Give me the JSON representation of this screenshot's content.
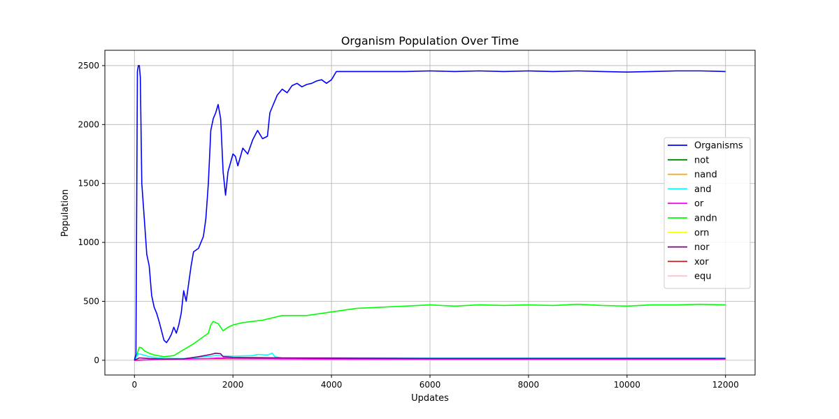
{
  "chart_data": {
    "type": "line",
    "title": "Organism Population Over Time",
    "xlabel": "Updates",
    "ylabel": "Population",
    "xlim": [
      -600,
      12600
    ],
    "ylim": [
      -125,
      2630
    ],
    "xticks": [
      0,
      2000,
      4000,
      6000,
      8000,
      10000,
      12000
    ],
    "xtick_labels": [
      "0",
      "2000",
      "4000",
      "6000",
      "8000",
      "10000",
      "12000"
    ],
    "yticks": [
      0,
      500,
      1000,
      1500,
      2000,
      2500
    ],
    "ytick_labels": [
      "0",
      "500",
      "1000",
      "1500",
      "2000",
      "2500"
    ],
    "grid": true,
    "legend_position": "center-right",
    "series": [
      {
        "name": "Organisms",
        "color": "#0000ff",
        "x": [
          0,
          30,
          60,
          80,
          100,
          120,
          150,
          200,
          250,
          300,
          350,
          400,
          450,
          500,
          550,
          600,
          650,
          700,
          750,
          800,
          850,
          900,
          950,
          1000,
          1050,
          1100,
          1150,
          1200,
          1300,
          1400,
          1450,
          1500,
          1550,
          1600,
          1650,
          1700,
          1750,
          1800,
          1850,
          1900,
          2000,
          2050,
          2100,
          2200,
          2300,
          2400,
          2500,
          2600,
          2700,
          2750,
          2800,
          2900,
          3000,
          3100,
          3200,
          3300,
          3400,
          3500,
          3600,
          3700,
          3800,
          3900,
          4000,
          4100,
          4200,
          4500,
          5000,
          5500,
          6000,
          6500,
          7000,
          7500,
          8000,
          8500,
          9000,
          9500,
          10000,
          10500,
          11000,
          11500,
          12000
        ],
        "y": [
          0,
          50,
          2450,
          2500,
          2500,
          2400,
          1500,
          1200,
          900,
          800,
          550,
          450,
          400,
          330,
          250,
          170,
          150,
          180,
          220,
          280,
          230,
          300,
          400,
          590,
          500,
          650,
          800,
          920,
          950,
          1050,
          1200,
          1500,
          1950,
          2050,
          2100,
          2170,
          2050,
          1600,
          1400,
          1600,
          1750,
          1730,
          1650,
          1800,
          1750,
          1870,
          1950,
          1880,
          1900,
          2100,
          2150,
          2250,
          2300,
          2270,
          2330,
          2350,
          2320,
          2340,
          2350,
          2370,
          2380,
          2350,
          2380,
          2450,
          2450,
          2450,
          2450,
          2450,
          2455,
          2450,
          2455,
          2450,
          2455,
          2450,
          2455,
          2450,
          2445,
          2450,
          2455,
          2455,
          2450
        ]
      },
      {
        "name": "not",
        "color": "#008000",
        "x": [
          0,
          500,
          1000,
          1500,
          2000,
          4000,
          8000,
          12000
        ],
        "y": [
          0,
          5,
          8,
          12,
          10,
          8,
          8,
          8
        ]
      },
      {
        "name": "nand",
        "color": "#ffa500",
        "x": [
          0,
          500,
          1000,
          1500,
          2000,
          4000,
          8000,
          12000
        ],
        "y": [
          0,
          3,
          5,
          8,
          7,
          6,
          6,
          6
        ]
      },
      {
        "name": "and",
        "color": "#00ffff",
        "x": [
          0,
          80,
          150,
          300,
          600,
          1000,
          1300,
          1650,
          2000,
          2400,
          2500,
          2700,
          2800,
          2850,
          3000,
          4000,
          6000,
          8000,
          10000,
          12000
        ],
        "y": [
          0,
          55,
          50,
          30,
          15,
          15,
          25,
          40,
          35,
          40,
          50,
          45,
          60,
          30,
          20,
          22,
          20,
          20,
          20,
          20
        ]
      },
      {
        "name": "or",
        "color": "#ff00ff",
        "x": [
          0,
          500,
          1000,
          1500,
          1700,
          2000,
          3000,
          4000,
          8000,
          12000
        ],
        "y": [
          0,
          8,
          10,
          15,
          20,
          15,
          12,
          10,
          10,
          10
        ]
      },
      {
        "name": "andn",
        "color": "#00ff00",
        "x": [
          0,
          60,
          100,
          150,
          200,
          300,
          400,
          600,
          800,
          1000,
          1200,
          1400,
          1500,
          1550,
          1600,
          1700,
          1800,
          1900,
          2000,
          2200,
          2400,
          2600,
          2800,
          3000,
          3500,
          4000,
          4500,
          5000,
          5500,
          6000,
          6500,
          7000,
          7500,
          8000,
          8500,
          9000,
          9500,
          10000,
          10500,
          11000,
          11500,
          12000
        ],
        "y": [
          0,
          60,
          110,
          105,
          80,
          60,
          45,
          30,
          40,
          90,
          140,
          200,
          230,
          300,
          330,
          310,
          250,
          280,
          300,
          320,
          330,
          340,
          360,
          380,
          380,
          410,
          440,
          450,
          460,
          470,
          460,
          470,
          465,
          470,
          465,
          475,
          465,
          460,
          470,
          470,
          475,
          470
        ]
      },
      {
        "name": "orn",
        "color": "#ffff00",
        "x": [
          0,
          500,
          1000,
          1500,
          2000,
          4000,
          8000,
          12000
        ],
        "y": [
          0,
          4,
          6,
          8,
          7,
          6,
          6,
          6
        ]
      },
      {
        "name": "nor",
        "color": "#800080",
        "x": [
          0,
          100,
          300,
          600,
          1000,
          1300,
          1550,
          1650,
          1750,
          1800,
          2000,
          2500,
          3000,
          4000,
          6000,
          8000,
          10000,
          12000
        ],
        "y": [
          0,
          20,
          15,
          10,
          12,
          30,
          50,
          60,
          55,
          30,
          25,
          22,
          20,
          18,
          15,
          15,
          15,
          15
        ]
      },
      {
        "name": "xor",
        "color": "#b22222",
        "x": [
          0,
          500,
          1000,
          1500,
          2000,
          4000,
          8000,
          12000
        ],
        "y": [
          0,
          5,
          8,
          10,
          9,
          8,
          8,
          8
        ]
      },
      {
        "name": "equ",
        "color": "#ffc0cb",
        "x": [
          0,
          500,
          1000,
          1500,
          2000,
          4000,
          8000,
          12000
        ],
        "y": [
          0,
          2,
          4,
          5,
          5,
          5,
          5,
          5
        ]
      }
    ]
  }
}
